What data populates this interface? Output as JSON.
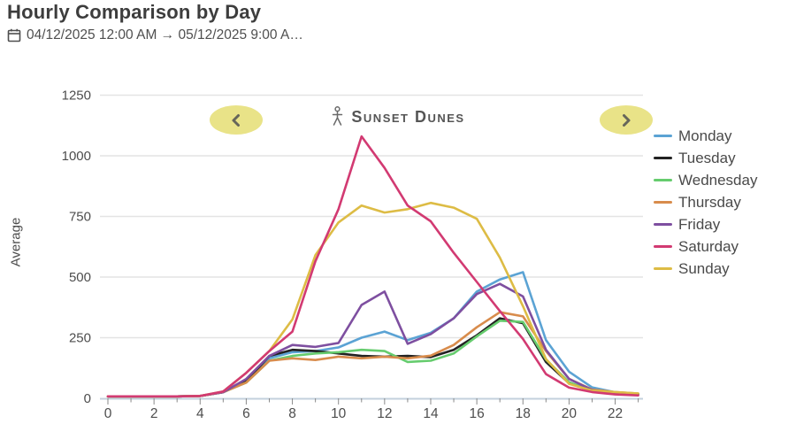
{
  "header": {
    "title": "Hourly Comparison by Day",
    "date_range": "04/12/2025 12:00 AM → 05/12/2025 9:00 A…",
    "calendar_icon": "calendar-icon"
  },
  "site_nav": {
    "prev_icon": "chevron-left",
    "next_icon": "chevron-right",
    "person_icon": "person",
    "site_name": "Sunset Dunes"
  },
  "colors": {
    "title_text": "#3d3d3d",
    "body_text": "#4f4f4f",
    "nav_pill": "#e9e388",
    "nav_chevron": "#66665a",
    "gridline": "#e4e4e4",
    "axis_line": "#c3d0dc",
    "tick": "#8a8a8a",
    "axis_text": "#4d4d4d"
  },
  "chart_data": {
    "type": "line",
    "title": "Hourly Comparison by Day",
    "xlabel": "",
    "ylabel": "Average",
    "x": [
      0,
      1,
      2,
      3,
      4,
      5,
      6,
      7,
      8,
      9,
      10,
      11,
      12,
      13,
      14,
      15,
      16,
      17,
      18,
      19,
      20,
      21,
      22,
      23
    ],
    "x_tick_labels": [
      0,
      2,
      4,
      6,
      8,
      10,
      12,
      14,
      16,
      18,
      20,
      22
    ],
    "y_ticks": [
      0,
      250,
      500,
      750,
      1000,
      1250
    ],
    "ylim": [
      0,
      1250
    ],
    "grid": "horizontal",
    "legend_position": "right",
    "series": [
      {
        "name": "Monday",
        "color": "#5ba3d4",
        "z": 1,
        "values": [
          8,
          8,
          8,
          8,
          10,
          25,
          75,
          165,
          190,
          195,
          210,
          250,
          275,
          240,
          270,
          330,
          440,
          490,
          520,
          240,
          110,
          45,
          25,
          18
        ]
      },
      {
        "name": "Tuesday",
        "color": "#222222",
        "z": 2,
        "values": [
          8,
          8,
          8,
          8,
          10,
          25,
          70,
          175,
          200,
          195,
          185,
          175,
          172,
          175,
          170,
          200,
          260,
          330,
          310,
          150,
          62,
          32,
          22,
          16
        ]
      },
      {
        "name": "Wednesday",
        "color": "#66cc6e",
        "z": 3,
        "values": [
          8,
          8,
          8,
          8,
          10,
          25,
          65,
          155,
          175,
          185,
          190,
          200,
          195,
          150,
          155,
          185,
          255,
          320,
          315,
          160,
          66,
          30,
          22,
          16
        ]
      },
      {
        "name": "Thursday",
        "color": "#d88c4c",
        "z": 4,
        "values": [
          8,
          8,
          8,
          8,
          10,
          25,
          65,
          155,
          165,
          158,
          172,
          165,
          172,
          165,
          176,
          220,
          293,
          355,
          338,
          195,
          80,
          36,
          26,
          20
        ]
      },
      {
        "name": "Friday",
        "color": "#7e4fa0",
        "z": 5,
        "values": [
          8,
          8,
          8,
          8,
          10,
          25,
          80,
          175,
          220,
          212,
          228,
          385,
          440,
          225,
          265,
          330,
          430,
          472,
          420,
          200,
          80,
          34,
          22,
          16
        ]
      },
      {
        "name": "Saturday",
        "color": "#d23a72",
        "z": 7,
        "values": [
          8,
          8,
          8,
          8,
          10,
          28,
          105,
          195,
          275,
          565,
          780,
          1080,
          950,
          795,
          730,
          600,
          480,
          360,
          245,
          100,
          44,
          26,
          16,
          12
        ]
      },
      {
        "name": "Sunday",
        "color": "#ddbc45",
        "z": 6,
        "values": [
          8,
          8,
          8,
          8,
          10,
          28,
          105,
          195,
          325,
          590,
          725,
          795,
          766,
          780,
          806,
          786,
          740,
          580,
          380,
          162,
          60,
          32,
          26,
          20
        ]
      }
    ]
  }
}
